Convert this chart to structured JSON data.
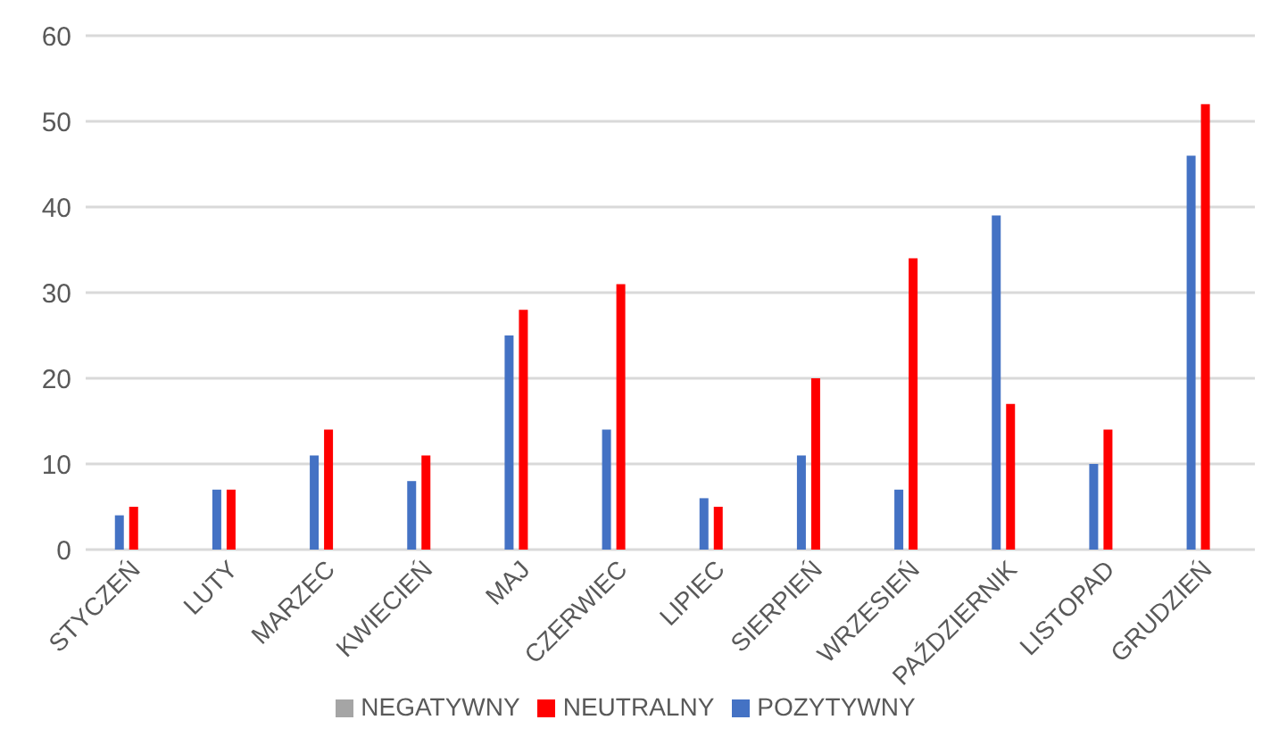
{
  "chart_data": {
    "type": "bar",
    "categories": [
      "STYCZEŃ",
      "LUTY",
      "MARZEC",
      "KWIECIEŃ",
      "MAJ",
      "CZERWIEC",
      "LIPIEC",
      "SIERPIEŃ",
      "WRZESIEŃ",
      "PAŹDZIERNIK",
      "LISTOPAD",
      "GRUDZIEŃ"
    ],
    "series": [
      {
        "name": "POZYTYWNY",
        "color": "#4472c4",
        "values": [
          4,
          7,
          11,
          8,
          25,
          14,
          6,
          11,
          7,
          39,
          10,
          46
        ]
      },
      {
        "name": "NEUTRALNY",
        "color": "#ff0000",
        "values": [
          5,
          7,
          14,
          11,
          28,
          31,
          5,
          20,
          34,
          17,
          14,
          52
        ]
      },
      {
        "name": "NEGATYWNY",
        "color": "#a5a5a5",
        "values": [
          0,
          0,
          0,
          0,
          0,
          0,
          0,
          0,
          0,
          0,
          0,
          0
        ]
      }
    ],
    "ylim": [
      0,
      60
    ],
    "yticks": [
      0,
      10,
      20,
      30,
      40,
      50,
      60
    ],
    "grid": "y",
    "legend": "bottom"
  }
}
